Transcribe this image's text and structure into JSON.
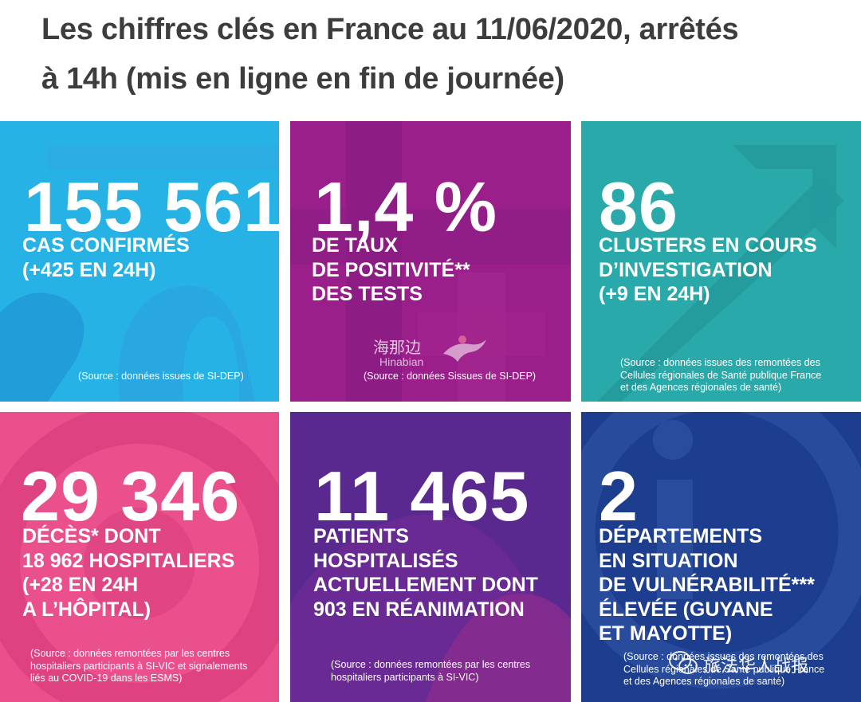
{
  "title": {
    "line1": "Les chiffres clés en France au 11/06/2020, arrêtés",
    "line2": "à 14h (mis en ligne en fin de journée)"
  },
  "tiles": [
    {
      "value": "155 561",
      "label": [
        "CAS CONFIRMÉS",
        "(+425 EN 24H)"
      ],
      "source": [
        "(Source : données issues de SI-DEP)"
      ],
      "color": "#27b2e6"
    },
    {
      "value": "1,4 %",
      "label": [
        "DE TAUX",
        "DE POSITIVITÉ**",
        "DES TESTS"
      ],
      "source": [
        "(Source : données Sissues de SI-DEP)"
      ],
      "color": "#9b1f8a"
    },
    {
      "value": "86",
      "label": [
        "CLUSTERS EN COURS",
        "D’INVESTIGATION",
        "(+9 EN 24H)"
      ],
      "source": [
        "(Source : données issues des remontées des",
        "Cellules régionales de Santé publique France",
        "et des Agences régionales de santé)"
      ],
      "color": "#2aa9aa"
    },
    {
      "value": "29 346",
      "label": [
        "DÉCÈS* DONT",
        "18 962 HOSPITALIERS",
        "(+28 EN 24H",
        "A L’HÔPITAL)"
      ],
      "source": [
        "(Source : données remontées par les centres",
        "hospitaliers participants à SI-VIC et signalements",
        "liés au COVID-19 dans les ESMS)"
      ],
      "color": "#e9508c"
    },
    {
      "value": "11 465",
      "label": [
        "PATIENTS",
        "HOSPITALISÉS",
        "ACTUELLEMENT DONT",
        "903 EN RÉANIMATION"
      ],
      "source": [
        "(Source : données remontées par les centres",
        "hospitaliers participants à SI-VIC)"
      ],
      "color": "#5a2990"
    },
    {
      "value": "2",
      "label": [
        "DÉPARTEMENTS",
        "EN SITUATION",
        "DE VULNÉRABILITÉ***",
        "ÉLEVÉE (GUYANE",
        "ET MAYOTTE)"
      ],
      "source": [
        "(Source : données issues des remontées des",
        "Cellules régionales de Santé publique France",
        "et des Agences régionales de santé)"
      ],
      "color": "#1d3d8f"
    }
  ],
  "watermark": {
    "zh": "海那边",
    "en": "Hinabian"
  },
  "watermark2": {
    "text": "旅法华人战报"
  },
  "icons": [
    "hinabian-logo-icon",
    "wechat-icon"
  ]
}
